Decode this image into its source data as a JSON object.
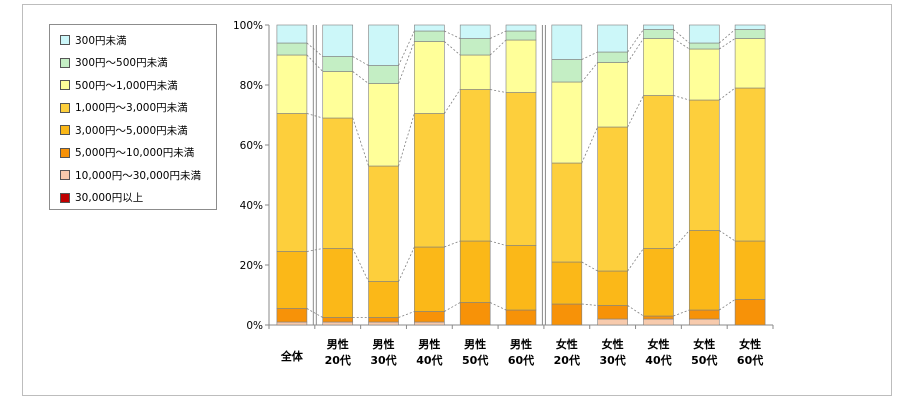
{
  "chart_data": {
    "type": "bar",
    "stacked": true,
    "percent": true,
    "title": "",
    "xlabel": "",
    "ylabel": "",
    "ylim": [
      0,
      100
    ],
    "yticks": [
      "0%",
      "20%",
      "40%",
      "60%",
      "80%",
      "100%"
    ],
    "categories": [
      [
        "全体"
      ],
      [
        "男性",
        "20代"
      ],
      [
        "男性",
        "30代"
      ],
      [
        "男性",
        "40代"
      ],
      [
        "男性",
        "50代"
      ],
      [
        "男性",
        "60代"
      ],
      [
        "女性",
        "20代"
      ],
      [
        "女性",
        "30代"
      ],
      [
        "女性",
        "40代"
      ],
      [
        "女性",
        "50代"
      ],
      [
        "女性",
        "60代"
      ]
    ],
    "series": [
      {
        "name": "30,000円以上",
        "color": "#c00000",
        "values": [
          0,
          0,
          0,
          0,
          0,
          0,
          0,
          0,
          0,
          0,
          0
        ]
      },
      {
        "name": "10,000円～30,000円未満",
        "color": "#f7caac",
        "values": [
          1,
          1,
          1,
          1,
          0,
          0,
          0,
          2,
          2,
          2,
          0
        ]
      },
      {
        "name": "5,000円～10,000円未満",
        "color": "#f79208",
        "values": [
          4.5,
          1.5,
          1.5,
          3.5,
          7.5,
          5,
          7,
          4.5,
          1,
          3,
          8.5
        ]
      },
      {
        "name": "3,000円～5,000円未満",
        "color": "#fbb818",
        "values": [
          19,
          23,
          12,
          21.5,
          20.5,
          21.5,
          14,
          11.5,
          22.5,
          26.5,
          19.5
        ]
      },
      {
        "name": "1,000円～3,000円未満",
        "color": "#fdcf3c",
        "values": [
          46,
          43.5,
          38.5,
          44.5,
          50.5,
          51,
          33,
          48,
          51,
          43.5,
          51
        ]
      },
      {
        "name": "500円～1,000円未満",
        "color": "#ffff99",
        "values": [
          19.5,
          15.5,
          27.5,
          24,
          11.5,
          17.5,
          27,
          21.5,
          19,
          17,
          16.5
        ]
      },
      {
        "name": "300円～500円未満",
        "color": "#c4eec4",
        "values": [
          4,
          5,
          6,
          3.5,
          5.5,
          3,
          7.5,
          3.5,
          3,
          2,
          3
        ]
      },
      {
        "name": "300円未満",
        "color": "#ccf7f9",
        "values": [
          6,
          10.5,
          13.5,
          2,
          4.5,
          2,
          11.5,
          9,
          1.5,
          6,
          1.5
        ]
      }
    ],
    "legend_order": [
      "300円未満",
      "300円～500円未満",
      "500円～1,000円未満",
      "1,000円～3,000円未満",
      "3,000円～5,000円未満",
      "5,000円～10,000円未満",
      "10,000円～30,000円未満",
      "30,000円以上"
    ],
    "legend_position": "left",
    "gridlines": false
  }
}
